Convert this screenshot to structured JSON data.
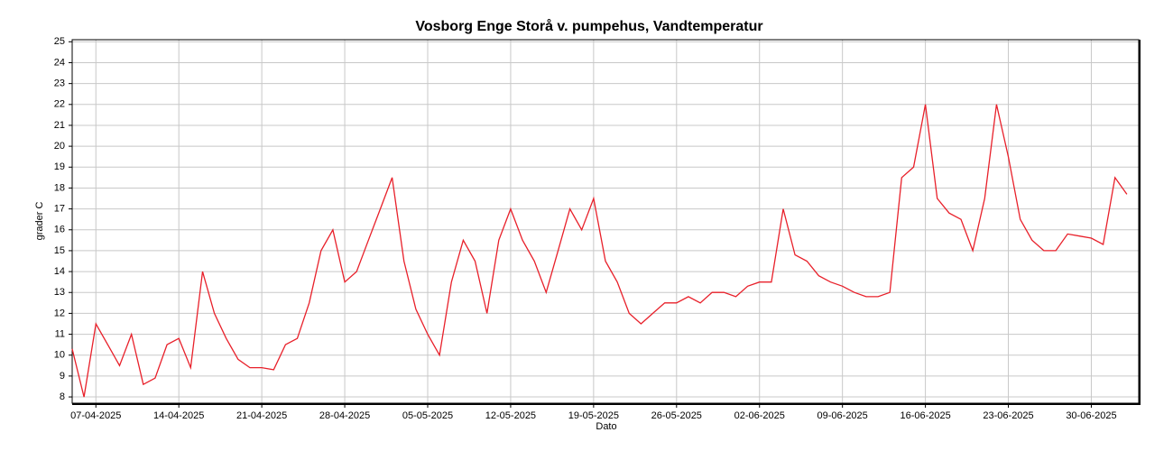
{
  "chart_data": {
    "type": "line",
    "title": "Vosborg Enge Storå v. pumpehus, Vandtemperatur",
    "xlabel": "Dato",
    "ylabel": "grader C",
    "x": [
      "2025-04-05",
      "2025-04-06",
      "2025-04-07",
      "2025-04-08",
      "2025-04-09",
      "2025-04-10",
      "2025-04-11",
      "2025-04-12",
      "2025-04-13",
      "2025-04-14",
      "2025-04-15",
      "2025-04-16",
      "2025-04-17",
      "2025-04-18",
      "2025-04-19",
      "2025-04-20",
      "2025-04-21",
      "2025-04-22",
      "2025-04-23",
      "2025-04-24",
      "2025-04-25",
      "2025-04-26",
      "2025-04-27",
      "2025-04-28",
      "2025-04-29",
      "2025-04-30",
      "2025-05-01",
      "2025-05-02",
      "2025-05-03",
      "2025-05-04",
      "2025-05-05",
      "2025-05-06",
      "2025-05-07",
      "2025-05-08",
      "2025-05-09",
      "2025-05-10",
      "2025-05-11",
      "2025-05-12",
      "2025-05-13",
      "2025-05-14",
      "2025-05-15",
      "2025-05-16",
      "2025-05-17",
      "2025-05-18",
      "2025-05-19",
      "2025-05-20",
      "2025-05-21",
      "2025-05-22",
      "2025-05-23",
      "2025-05-24",
      "2025-05-25",
      "2025-05-26",
      "2025-05-27",
      "2025-05-28",
      "2025-05-29",
      "2025-05-30",
      "2025-05-31",
      "2025-06-01",
      "2025-06-02",
      "2025-06-03",
      "2025-06-04",
      "2025-06-05",
      "2025-06-06",
      "2025-06-07",
      "2025-06-08",
      "2025-06-09",
      "2025-06-10",
      "2025-06-11",
      "2025-06-12",
      "2025-06-13",
      "2025-06-14",
      "2025-06-15",
      "2025-06-16",
      "2025-06-17",
      "2025-06-18",
      "2025-06-19",
      "2025-06-20",
      "2025-06-21",
      "2025-06-22",
      "2025-06-23",
      "2025-06-24",
      "2025-06-25",
      "2025-06-26",
      "2025-06-27",
      "2025-06-28",
      "2025-06-29",
      "2025-06-30",
      "2025-07-01",
      "2025-07-02",
      "2025-07-03"
    ],
    "series": [
      {
        "name": "Vandtemperatur",
        "color": "#e8202a",
        "values": [
          10.3,
          8.0,
          11.5,
          10.5,
          9.5,
          11.0,
          8.6,
          8.9,
          10.5,
          10.8,
          9.4,
          14.0,
          12.0,
          10.8,
          9.8,
          9.4,
          9.4,
          9.3,
          10.5,
          10.8,
          12.5,
          15.0,
          16.0,
          13.5,
          14.0,
          15.5,
          17.0,
          18.5,
          14.5,
          12.2,
          11.0,
          10.0,
          13.5,
          15.5,
          14.5,
          12.0,
          15.5,
          17.0,
          15.5,
          14.5,
          13.0,
          15.0,
          17.0,
          16.0,
          17.5,
          14.5,
          13.5,
          12.0,
          11.5,
          12.0,
          12.5,
          12.5,
          12.8,
          12.5,
          13.0,
          13.0,
          12.8,
          13.3,
          13.5,
          13.5,
          17.0,
          14.8,
          14.5,
          13.8,
          13.5,
          13.3,
          13.0,
          12.8,
          12.8,
          13.0,
          18.5,
          19.0,
          22.0,
          17.5,
          16.8,
          16.5,
          15.0,
          17.5,
          22.0,
          19.5,
          16.5,
          15.5,
          15.0,
          15.0,
          15.8,
          15.7,
          15.6,
          15.3,
          18.5,
          17.7
        ]
      }
    ],
    "xlim": [
      "2025-04-05",
      "2025-07-04"
    ],
    "xticks": [
      {
        "value": "2025-04-07",
        "label": "07-04-2025"
      },
      {
        "value": "2025-04-14",
        "label": "14-04-2025"
      },
      {
        "value": "2025-04-21",
        "label": "21-04-2025"
      },
      {
        "value": "2025-04-28",
        "label": "28-04-2025"
      },
      {
        "value": "2025-05-05",
        "label": "05-05-2025"
      },
      {
        "value": "2025-05-12",
        "label": "12-05-2025"
      },
      {
        "value": "2025-05-19",
        "label": "19-05-2025"
      },
      {
        "value": "2025-05-26",
        "label": "26-05-2025"
      },
      {
        "value": "2025-06-02",
        "label": "02-06-2025"
      },
      {
        "value": "2025-06-09",
        "label": "09-06-2025"
      },
      {
        "value": "2025-06-16",
        "label": "16-06-2025"
      },
      {
        "value": "2025-06-23",
        "label": "23-06-2025"
      },
      {
        "value": "2025-06-30",
        "label": "30-06-2025"
      }
    ],
    "ylim": [
      7.7,
      25.1
    ],
    "yticks": [
      8,
      9,
      10,
      11,
      12,
      13,
      14,
      15,
      16,
      17,
      18,
      19,
      20,
      21,
      22,
      23,
      24,
      25
    ],
    "grid": true
  }
}
